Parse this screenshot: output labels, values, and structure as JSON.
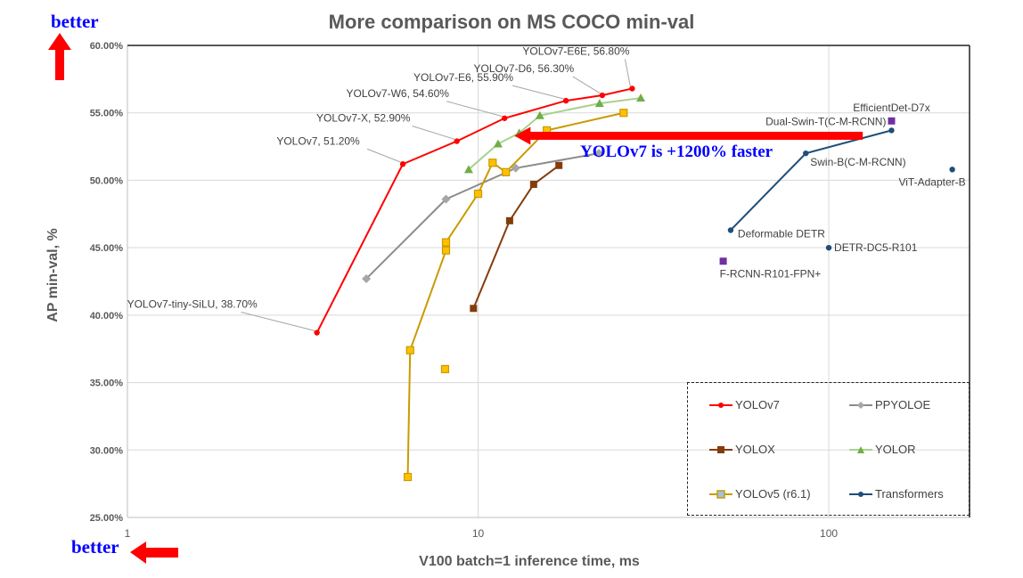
{
  "chart_data": {
    "type": "scatter",
    "title": "More comparison on MS COCO min-val",
    "xlabel": "V100 batch=1 inference time, ms",
    "ylabel": "AP min-val, %",
    "x_scale": "log",
    "xlim": [
      1,
      252
    ],
    "ylim": [
      25,
      60
    ],
    "x_ticks": [
      "1",
      "10",
      "100"
    ],
    "y_ticks": [
      "25.00%",
      "30.00%",
      "35.00%",
      "40.00%",
      "45.00%",
      "50.00%",
      "55.00%",
      "60.00%"
    ],
    "grid": true,
    "legend_position": "bottom-right",
    "series": [
      {
        "name": "YOLOv7",
        "color": "#ff0000",
        "marker": "circle",
        "connected": true,
        "points": [
          [
            3.47,
            38.7
          ],
          [
            6.1,
            51.2
          ],
          [
            8.7,
            52.9
          ],
          [
            11.9,
            54.6
          ],
          [
            17.8,
            55.9
          ],
          [
            22.6,
            56.3
          ],
          [
            27.5,
            56.8
          ]
        ],
        "labels": [
          "YOLOv7-tiny-SiLU, 38.70%",
          "YOLOv7, 51.20%",
          "YOLOv7-X, 52.90%",
          "YOLOv7-W6, 54.60%",
          "YOLOv7-E6, 55.90%",
          "YOLOv7-D6, 56.30%",
          "YOLOv7-E6E, 56.80%"
        ]
      },
      {
        "name": "PPYOLOE",
        "color": "#8c8c8c",
        "marker": "diamond",
        "connected": true,
        "points": [
          [
            4.8,
            42.7
          ],
          [
            8.1,
            48.6
          ],
          [
            12.8,
            50.9
          ],
          [
            22.1,
            52.0
          ]
        ]
      },
      {
        "name": "YOLOX",
        "color": "#843c0c",
        "marker": "square",
        "connected": true,
        "points": [
          [
            9.7,
            40.5
          ],
          [
            12.3,
            47.0
          ],
          [
            14.4,
            49.7
          ],
          [
            17.0,
            51.1
          ]
        ]
      },
      {
        "name": "YOLOR",
        "color": "#70ad47",
        "marker": "triangle",
        "connected": true,
        "points": [
          [
            9.4,
            50.8
          ],
          [
            11.4,
            52.7
          ],
          [
            13.1,
            53.5
          ],
          [
            15.0,
            54.8
          ],
          [
            22.2,
            55.7
          ],
          [
            29.1,
            56.1
          ]
        ]
      },
      {
        "name": "YOLOv5 (r6.1)",
        "color": "#c89b00",
        "marker": "square-yellow",
        "connected": true,
        "points": [
          [
            6.3,
            28.0
          ],
          [
            6.4,
            37.4
          ],
          [
            8.1,
            44.8
          ],
          [
            8.1,
            45.4
          ],
          [
            10.0,
            49.0
          ],
          [
            11.0,
            51.3
          ],
          [
            12.0,
            50.6
          ],
          [
            15.7,
            53.7
          ],
          [
            26.0,
            55.0
          ]
        ],
        "extra_points": [
          [
            8.05,
            36.0
          ]
        ]
      },
      {
        "name": "Transformers",
        "color": "#1f4e79",
        "marker": "circle",
        "connected": true,
        "points": [
          [
            52.5,
            46.3
          ],
          [
            86,
            52.0
          ],
          [
            151,
            53.7
          ]
        ],
        "labels": [
          "Deformable DETR",
          "Swin-B(C-M-RCNN)",
          "Dual-Swin-T(C-M-RCNN)"
        ]
      }
    ],
    "single_points": [
      {
        "label": "DETR-DC5-R101",
        "x": 100,
        "y": 45.0,
        "color": "#1f4e79",
        "marker": "circle"
      },
      {
        "label": "ViT-Adapter-B",
        "x": 225,
        "y": 50.8,
        "color": "#1f4e79",
        "marker": "circle"
      },
      {
        "label": "EfficientDet-D7x",
        "x": 151,
        "y": 54.4,
        "color": "#7030a0",
        "marker": "square"
      },
      {
        "label": "F-RCNN-R101-FPN+",
        "x": 50,
        "y": 44.0,
        "color": "#7030a0",
        "marker": "square"
      }
    ],
    "annotations": {
      "arrow_text": "YOLOv7 is +1200% faster",
      "arrow_from": [
        125,
        53.3
      ],
      "arrow_to": [
        12.7,
        53.3
      ],
      "better_y": "better",
      "better_x": "better"
    }
  }
}
